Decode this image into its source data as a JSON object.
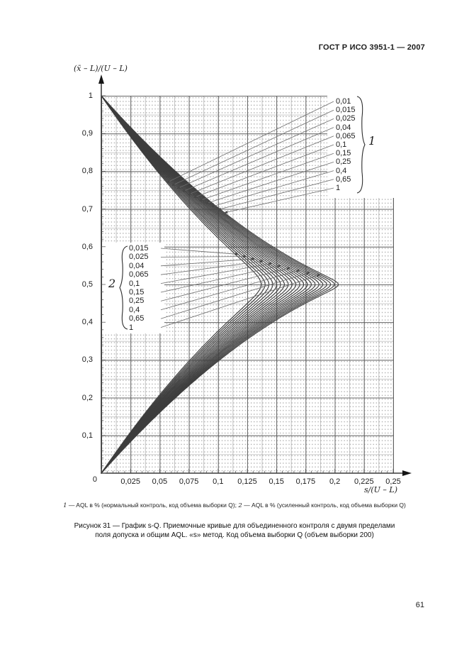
{
  "page": {
    "header": "ГОСТ Р ИСО 3951-1 — 2007",
    "page_number": "61",
    "footnote": {
      "n1": "1",
      "t1": " — AQL в % (нормальный контроль, код объема выборки Q); ",
      "n2": "2",
      "t2": " — AQL в % (усиленный контроль, код объема выборки Q)"
    },
    "caption_line1": "Рисунок 31 — График s-Q. Приемочные кривые для объединенного контроля с двумя пределами",
    "caption_line2": "поля допуска и общим AQL. «s» метод. Код объема выборки Q (объем выборки 200)"
  },
  "chart_data": {
    "type": "line",
    "title": "График s-Q. Приемочные кривые для объединенного контроля с двумя пределами поля допуска и общим AQL, «s» метод, код объема выборки Q (объем выборки 200)",
    "xlabel": "s/(U – L)",
    "ylabel": "(x̄ – L)/(U – L)",
    "xlim": [
      0,
      0.25
    ],
    "ylim": [
      0,
      1
    ],
    "grid": "fine dotted minor grid with solid major lines every 0.025 (x) and 0.1 (y)",
    "legend_position": "group 1 box upper right, group 2 box middle left",
    "origin_label": "0",
    "x_ticks": {
      "values": [
        0.025,
        0.05,
        0.075,
        0.1,
        0.125,
        0.15,
        0.175,
        0.2,
        0.225,
        0.25
      ],
      "labels": [
        "0,025",
        "0,05",
        "0,075",
        "0,1",
        "0,125",
        "0,15",
        "0,175",
        "0,2",
        "0,225",
        "0,25"
      ]
    },
    "y_ticks": {
      "values": [
        1,
        0.9,
        0.8,
        0.7,
        0.6,
        0.5,
        0.4,
        0.3,
        0.2,
        0.1
      ],
      "labels": [
        "1",
        "0,9",
        "0,8",
        "0,7",
        "0,6",
        "0,5",
        "0,4",
        "0,3",
        "0,2",
        "0,1"
      ]
    },
    "curve_shape": "each acceptance curve runs from (s=0, ybar=1) out to its rightmost point (apex_s, 0.5) and back to (s=0, ybar=0)",
    "series": [
      {
        "group_numeral": "1",
        "name": "AQL в % (нормальный контроль, код объема выборки Q)",
        "curves": [
          {
            "aql": "0,01",
            "apex_s": 0.137,
            "apex_y": 0.5
          },
          {
            "aql": "0,015",
            "apex_s": 0.1436,
            "apex_y": 0.5
          },
          {
            "aql": "0,025",
            "apex_s": 0.1502,
            "apex_y": 0.5
          },
          {
            "aql": "0,04",
            "apex_s": 0.1568,
            "apex_y": 0.5
          },
          {
            "aql": "0,065",
            "apex_s": 0.1634,
            "apex_y": 0.5
          },
          {
            "aql": "0,1",
            "apex_s": 0.17,
            "apex_y": 0.5
          },
          {
            "aql": "0,15",
            "apex_s": 0.1766,
            "apex_y": 0.5
          },
          {
            "aql": "0,25",
            "apex_s": 0.1832,
            "apex_y": 0.5
          },
          {
            "aql": "0,4",
            "apex_s": 0.1898,
            "apex_y": 0.5
          },
          {
            "aql": "0,65",
            "apex_s": 0.1964,
            "apex_y": 0.5
          },
          {
            "aql": "1",
            "apex_s": 0.203,
            "apex_y": 0.5
          }
        ]
      },
      {
        "group_numeral": "2",
        "name": "AQL в % (усиленный контроль, код объема выборки Q)",
        "curves": [
          {
            "aql": "0,015",
            "apex_s": 0.1403,
            "apex_y": 0.5
          },
          {
            "aql": "0,025",
            "apex_s": 0.1469,
            "apex_y": 0.5
          },
          {
            "aql": "0,04",
            "apex_s": 0.1535,
            "apex_y": 0.5
          },
          {
            "aql": "0,065",
            "apex_s": 0.1601,
            "apex_y": 0.5
          },
          {
            "aql": "0,1",
            "apex_s": 0.1667,
            "apex_y": 0.5
          },
          {
            "aql": "0,15",
            "apex_s": 0.1733,
            "apex_y": 0.5
          },
          {
            "aql": "0,25",
            "apex_s": 0.1799,
            "apex_y": 0.5
          },
          {
            "aql": "0,4",
            "apex_s": 0.1865,
            "apex_y": 0.5
          },
          {
            "aql": "0,65",
            "apex_s": 0.1931,
            "apex_y": 0.5
          },
          {
            "aql": "1",
            "apex_s": 0.1997,
            "apex_y": 0.5
          }
        ]
      }
    ]
  }
}
